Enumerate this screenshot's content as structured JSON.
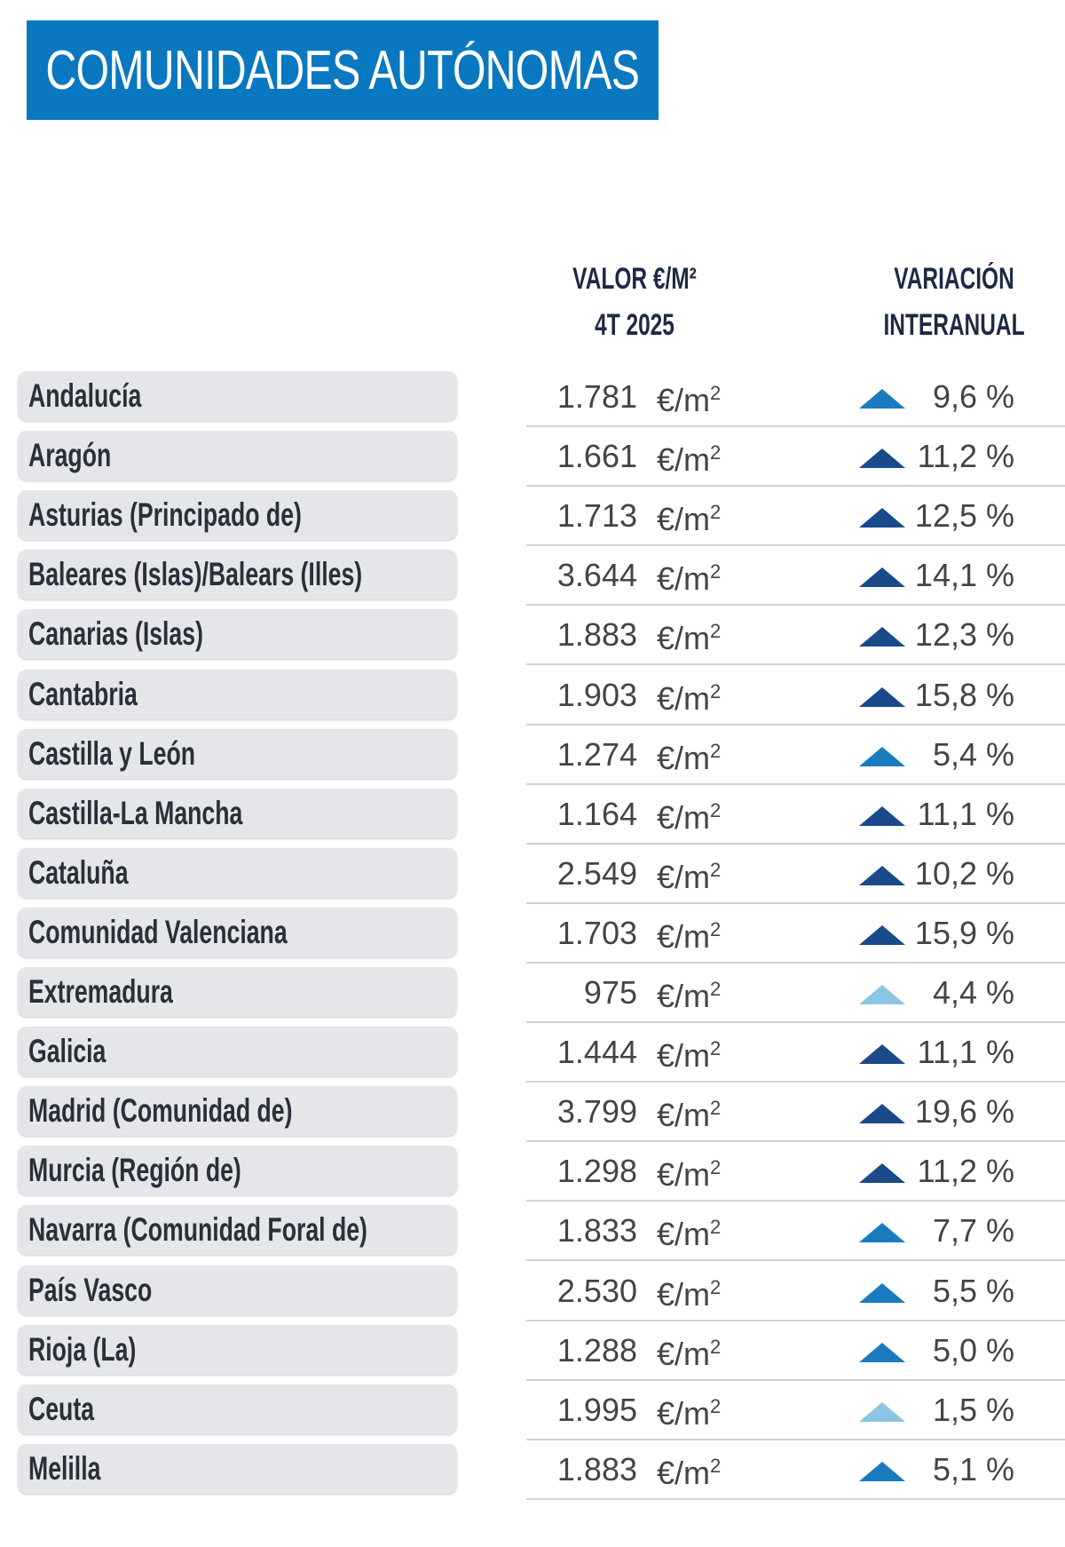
{
  "title": "COMUNIDADES AUTÓNOMAS",
  "columns": {
    "value": [
      "VALOR €/M²",
      "4T 2025"
    ],
    "variation": [
      "VARIACIÓN",
      "INTERANUAL"
    ]
  },
  "unit": "€/m",
  "unit_sup": "2",
  "colors": {
    "high": "#1a4a8a",
    "mid": "#1a7bbf",
    "low": "#8cc4e4",
    "title_bg": "#0a78c0"
  },
  "rows": [
    {
      "name": "Andalucía",
      "value": "1.781",
      "variation": "9,6 %",
      "trend": "up",
      "level": "mid"
    },
    {
      "name": "Aragón",
      "value": "1.661",
      "variation": "11,2 %",
      "trend": "up",
      "level": "high"
    },
    {
      "name": "Asturias (Principado de)",
      "value": "1.713",
      "variation": "12,5 %",
      "trend": "up",
      "level": "high"
    },
    {
      "name": "Baleares (Islas)/Balears (Illes)",
      "value": "3.644",
      "variation": "14,1 %",
      "trend": "up",
      "level": "high"
    },
    {
      "name": "Canarias (Islas)",
      "value": "1.883",
      "variation": "12,3 %",
      "trend": "up",
      "level": "high"
    },
    {
      "name": "Cantabria",
      "value": "1.903",
      "variation": "15,8 %",
      "trend": "up",
      "level": "high"
    },
    {
      "name": "Castilla y León",
      "value": "1.274",
      "variation": "5,4 %",
      "trend": "up",
      "level": "mid"
    },
    {
      "name": "Castilla-La Mancha",
      "value": "1.164",
      "variation": "11,1 %",
      "trend": "up",
      "level": "high"
    },
    {
      "name": "Cataluña",
      "value": "2.549",
      "variation": "10,2 %",
      "trend": "up",
      "level": "high"
    },
    {
      "name": "Comunidad Valenciana",
      "value": "1.703",
      "variation": "15,9 %",
      "trend": "up",
      "level": "high"
    },
    {
      "name": "Extremadura",
      "value": "975",
      "variation": "4,4 %",
      "trend": "up",
      "level": "low"
    },
    {
      "name": "Galicia",
      "value": "1.444",
      "variation": "11,1 %",
      "trend": "up",
      "level": "high"
    },
    {
      "name": "Madrid (Comunidad de)",
      "value": "3.799",
      "variation": "19,6 %",
      "trend": "up",
      "level": "high"
    },
    {
      "name": "Murcia (Región de)",
      "value": "1.298",
      "variation": "11,2 %",
      "trend": "up",
      "level": "high"
    },
    {
      "name": "Navarra (Comunidad Foral de)",
      "value": "1.833",
      "variation": "7,7 %",
      "trend": "up",
      "level": "mid"
    },
    {
      "name": "País Vasco",
      "value": "2.530",
      "variation": "5,5 %",
      "trend": "up",
      "level": "mid"
    },
    {
      "name": "Rioja (La)",
      "value": "1.288",
      "variation": "5,0 %",
      "trend": "up",
      "level": "mid"
    },
    {
      "name": "Ceuta",
      "value": "1.995",
      "variation": "1,5 %",
      "trend": "up",
      "level": "low"
    },
    {
      "name": "Melilla",
      "value": "1.883",
      "variation": "5,1 %",
      "trend": "up",
      "level": "mid"
    }
  ]
}
